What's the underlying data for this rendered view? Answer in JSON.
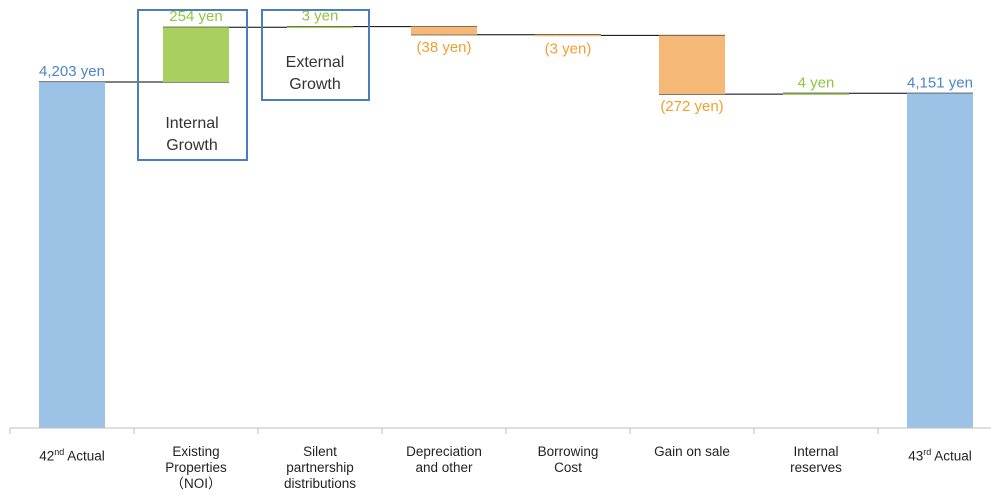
{
  "chart_data": {
    "type": "waterfall",
    "unit": "yen",
    "categories": [
      [
        "42",
        "nd",
        " Actual"
      ],
      [
        "Existing",
        "Properties",
        "（NOI）"
      ],
      [
        "Silent",
        "partnership",
        "distributions"
      ],
      [
        "Depreciation",
        "and other"
      ],
      [
        "Borrowing",
        "Cost"
      ],
      [
        "Gain on sale"
      ],
      [
        "Internal",
        "reserves"
      ],
      [
        "43",
        "rd",
        " Actual"
      ]
    ],
    "steps": [
      {
        "kind": "total",
        "value": 4203,
        "label": "4,203 yen"
      },
      {
        "kind": "delta",
        "value": 254,
        "label": "254 yen"
      },
      {
        "kind": "delta",
        "value": 3,
        "label": "3 yen"
      },
      {
        "kind": "delta",
        "value": -38,
        "label": "(38 yen)"
      },
      {
        "kind": "delta",
        "value": -3,
        "label": "(3 yen)"
      },
      {
        "kind": "delta",
        "value": -272,
        "label": "(272 yen)"
      },
      {
        "kind": "delta",
        "value": 4,
        "label": "4 yen"
      },
      {
        "kind": "total",
        "value": 4151,
        "label": "4,151 yen"
      }
    ],
    "ylim": [
      2600,
      4560
    ],
    "colors": {
      "total": "#9cc3e6",
      "increase": "#a9d05f",
      "decrease": "#f5b877",
      "total_label": "#4a86c8",
      "increase_label": "#8dc63f",
      "decrease_label": "#f0a030",
      "connector": "#000000"
    },
    "callouts": [
      {
        "text": [
          "Internal",
          "Growth"
        ],
        "category_index": 1
      },
      {
        "text": [
          "External",
          "Growth"
        ],
        "category_index": 2
      }
    ]
  }
}
